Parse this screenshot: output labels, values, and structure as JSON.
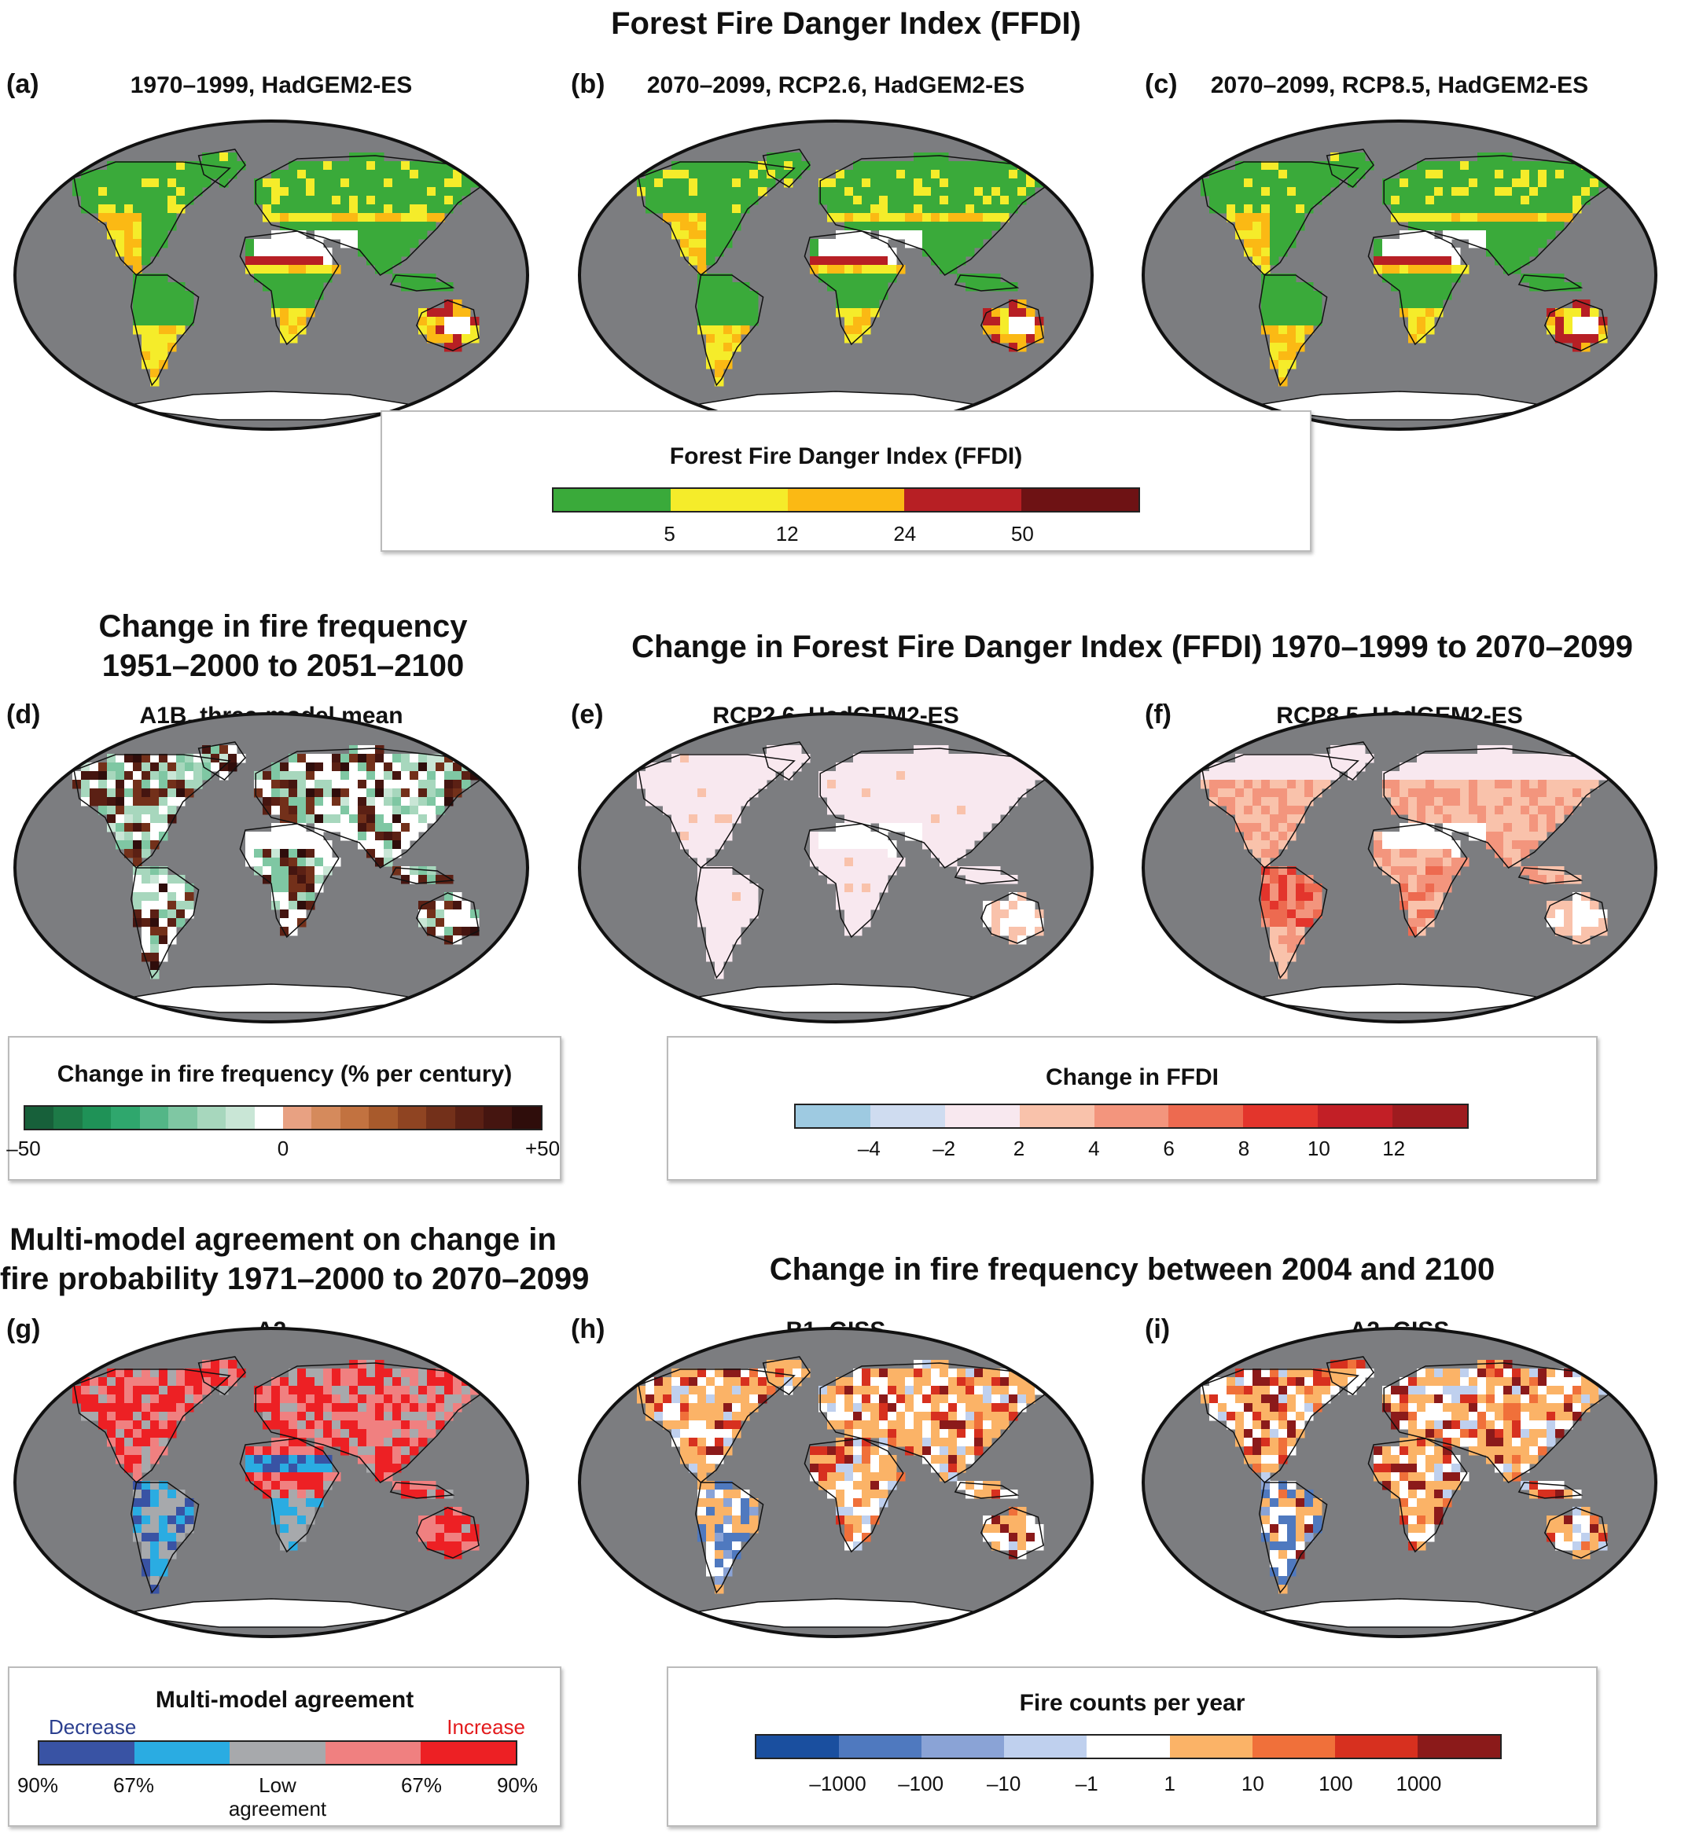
{
  "title": "Forest Fire Danger Index (FFDI)",
  "colors": {
    "ocean": "#7c7d80",
    "landWhite": "#ffffff",
    "ffdi": [
      "#3aaa3a",
      "#f5ec2a",
      "#fbb914",
      "#b71f24",
      "#6e1214"
    ],
    "fireFreq": [
      "#17603a",
      "#1d7a47",
      "#1f9257",
      "#2fa76d",
      "#53b687",
      "#7fc7a3",
      "#a7d7bd",
      "#c9e6d6",
      "#ffffff",
      "#e8a182",
      "#d58a5c",
      "#c27240",
      "#a85a2c",
      "#8f4422",
      "#73301a",
      "#5b2014",
      "#451510",
      "#2f0d0b"
    ],
    "ffdiChange": [
      "#9ecae1",
      "#cfdcf0",
      "#f8e8ef",
      "#f9c2ab",
      "#f3957d",
      "#ed6a50",
      "#e3352c",
      "#c21f26",
      "#9e1b1f"
    ],
    "agreement": [
      "#3953a4",
      "#2aace2",
      "#a7a9ac",
      "#f08080",
      "#ed2024"
    ],
    "fireCounts": [
      "#1a4f9f",
      "#4f79bf",
      "#8aa3d6",
      "#bfd0ee",
      "#ffffff",
      "#fbb367",
      "#f0703a",
      "#d7301f",
      "#8b1a1a"
    ]
  },
  "sections": {
    "top": {
      "title": "Forest Fire Danger Index (FFDI)"
    },
    "middle_left": {
      "title_line1": "Change in fire frequency",
      "title_line2": "1951–2000 to 2051–2100"
    },
    "middle_right": {
      "title": "Change in Forest Fire Danger Index (FFDI) 1970–1999 to 2070–2099"
    },
    "bottom_left": {
      "title_line1": "Multi-model agreement on change in",
      "title_line2": "fire probability 1971–2000 to 2070–2099"
    },
    "bottom_right": {
      "title": "Change in fire frequency between 2004 and 2100"
    }
  },
  "panels": [
    {
      "letter": "(a)",
      "title": "1970–1999, HadGEM2-ES",
      "scheme": "ffdi",
      "intensity": 0.3
    },
    {
      "letter": "(b)",
      "title": "2070–2099, RCP2.6, HadGEM2-ES",
      "scheme": "ffdi",
      "intensity": 0.45
    },
    {
      "letter": "(c)",
      "title": "2070–2099, RCP8.5, HadGEM2-ES",
      "scheme": "ffdi",
      "intensity": 0.6
    },
    {
      "letter": "(d)",
      "title": "A1B, three-model mean",
      "scheme": "fireFreq",
      "intensity": 0.5
    },
    {
      "letter": "(e)",
      "title": "RCP2.6, HadGEM2-ES",
      "scheme": "ffdiChangeLow",
      "intensity": 0.2
    },
    {
      "letter": "(f)",
      "title": "RCP8.5, HadGEM2-ES",
      "scheme": "ffdiChangeHigh",
      "intensity": 0.6
    },
    {
      "letter": "(g)",
      "title": "A2",
      "scheme": "agreement",
      "intensity": 0.5
    },
    {
      "letter": "(h)",
      "title": "B1, GISS",
      "scheme": "fireCounts",
      "intensity": 0.45
    },
    {
      "letter": "(i)",
      "title": "A2, GISS",
      "scheme": "fireCounts",
      "intensity": 0.55
    }
  ],
  "legends": {
    "ffdi": {
      "title": "Forest Fire Danger Index (FFDI)",
      "ticks": [
        "5",
        "12",
        "24",
        "50"
      ]
    },
    "fireFreq": {
      "title": "Change in fire frequency (% per century)",
      "ticks": [
        "–50",
        "0",
        "+50"
      ]
    },
    "ffdiChange": {
      "title": "Change in FFDI",
      "ticks": [
        "–4",
        "–2",
        "2",
        "4",
        "6",
        "8",
        "10",
        "12"
      ]
    },
    "agreement": {
      "title": "Multi-model agreement",
      "decrease": "Decrease",
      "increase": "Increase",
      "ticks": [
        "90%",
        "67%",
        "Low agreement",
        "67%",
        "90%"
      ]
    },
    "fireCounts": {
      "title": "Fire counts per year",
      "ticks": [
        "–1000",
        "–100",
        "–10",
        "–1",
        "1",
        "10",
        "100",
        "1000"
      ]
    }
  }
}
